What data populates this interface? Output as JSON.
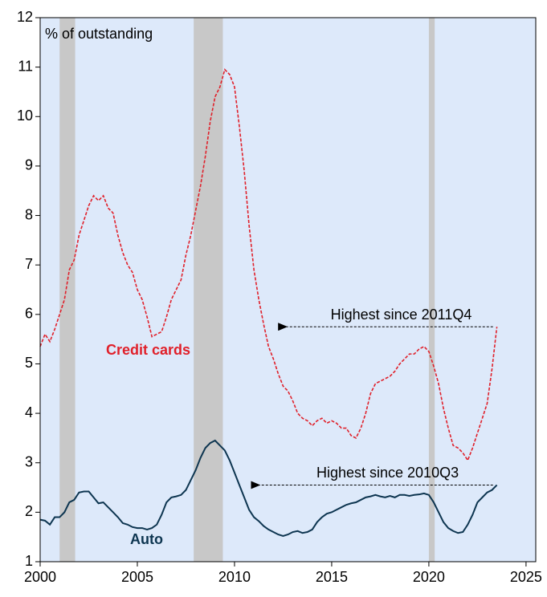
{
  "chart_data": {
    "type": "line",
    "ylabel": "% of outstanding",
    "x": [
      2000.0,
      2000.25,
      2000.5,
      2000.75,
      2001.0,
      2001.25,
      2001.5,
      2001.75,
      2002.0,
      2002.25,
      2002.5,
      2002.75,
      2003.0,
      2003.25,
      2003.5,
      2003.75,
      2004.0,
      2004.25,
      2004.5,
      2004.75,
      2005.0,
      2005.25,
      2005.5,
      2005.75,
      2006.0,
      2006.25,
      2006.5,
      2006.75,
      2007.0,
      2007.25,
      2007.5,
      2007.75,
      2008.0,
      2008.25,
      2008.5,
      2008.75,
      2009.0,
      2009.25,
      2009.5,
      2009.75,
      2010.0,
      2010.25,
      2010.5,
      2010.75,
      2011.0,
      2011.25,
      2011.5,
      2011.75,
      2012.0,
      2012.25,
      2012.5,
      2012.75,
      2013.0,
      2013.25,
      2013.5,
      2013.75,
      2014.0,
      2014.25,
      2014.5,
      2014.75,
      2015.0,
      2015.25,
      2015.5,
      2015.75,
      2016.0,
      2016.25,
      2016.5,
      2016.75,
      2017.0,
      2017.25,
      2017.5,
      2017.75,
      2018.0,
      2018.25,
      2018.5,
      2018.75,
      2019.0,
      2019.25,
      2019.5,
      2019.75,
      2020.0,
      2020.25,
      2020.5,
      2020.75,
      2021.0,
      2021.25,
      2021.5,
      2021.75,
      2022.0,
      2022.25,
      2022.5,
      2022.75,
      2023.0,
      2023.25,
      2023.5
    ],
    "series": [
      {
        "name": "Credit cards",
        "color": "#e0202a",
        "dash": true,
        "values": [
          5.35,
          5.6,
          5.45,
          5.7,
          6.0,
          6.3,
          6.9,
          7.1,
          7.6,
          7.9,
          8.2,
          8.4,
          8.3,
          8.4,
          8.15,
          8.05,
          7.6,
          7.25,
          7.0,
          6.85,
          6.5,
          6.3,
          5.95,
          5.55,
          5.6,
          5.65,
          5.95,
          6.3,
          6.5,
          6.7,
          7.2,
          7.6,
          8.1,
          8.6,
          9.2,
          9.9,
          10.4,
          10.6,
          10.95,
          10.85,
          10.6,
          9.8,
          8.9,
          7.8,
          6.9,
          6.3,
          5.8,
          5.35,
          5.1,
          4.8,
          4.55,
          4.45,
          4.25,
          4.0,
          3.9,
          3.85,
          3.75,
          3.85,
          3.9,
          3.8,
          3.85,
          3.8,
          3.7,
          3.7,
          3.55,
          3.5,
          3.7,
          4.0,
          4.4,
          4.6,
          4.65,
          4.7,
          4.75,
          4.85,
          5.0,
          5.1,
          5.2,
          5.2,
          5.3,
          5.35,
          5.25,
          4.95,
          4.6,
          4.1,
          3.7,
          3.35,
          3.3,
          3.2,
          3.05,
          3.3,
          3.6,
          3.9,
          4.2,
          4.9,
          5.75
        ]
      },
      {
        "name": "Auto",
        "color": "#0d3550",
        "dash": false,
        "values": [
          1.85,
          1.83,
          1.75,
          1.9,
          1.9,
          2.0,
          2.2,
          2.25,
          2.4,
          2.42,
          2.42,
          2.3,
          2.18,
          2.2,
          2.1,
          2.0,
          1.9,
          1.78,
          1.75,
          1.7,
          1.68,
          1.68,
          1.65,
          1.68,
          1.75,
          1.95,
          2.2,
          2.3,
          2.32,
          2.35,
          2.45,
          2.65,
          2.85,
          3.1,
          3.3,
          3.4,
          3.45,
          3.35,
          3.25,
          3.05,
          2.8,
          2.55,
          2.3,
          2.05,
          1.9,
          1.82,
          1.72,
          1.65,
          1.6,
          1.55,
          1.52,
          1.55,
          1.6,
          1.62,
          1.58,
          1.6,
          1.65,
          1.8,
          1.9,
          1.97,
          2.0,
          2.05,
          2.1,
          2.15,
          2.18,
          2.2,
          2.25,
          2.3,
          2.32,
          2.35,
          2.32,
          2.3,
          2.33,
          2.3,
          2.35,
          2.35,
          2.33,
          2.35,
          2.36,
          2.38,
          2.35,
          2.2,
          2.0,
          1.8,
          1.68,
          1.62,
          1.58,
          1.6,
          1.75,
          1.95,
          2.2,
          2.3,
          2.4,
          2.45,
          2.55
        ]
      }
    ],
    "shaded_periods": [
      [
        2001.0,
        2001.8
      ],
      [
        2007.9,
        2009.4
      ],
      [
        2020.0,
        2020.3
      ]
    ],
    "annotations": [
      {
        "text": "Highest since 2011Q4",
        "x": 2012.2,
        "x_end": 2023.3,
        "y": 5.75
      },
      {
        "text": "Highest since 2010Q3",
        "x": 2010.8,
        "x_end": 2023.3,
        "y": 2.55
      }
    ],
    "xlim": [
      2000,
      2025.5
    ],
    "xticks": [
      2000,
      2005,
      2010,
      2015,
      2020,
      2025
    ],
    "ylim": [
      1,
      12
    ],
    "yticks": [
      1,
      2,
      3,
      4,
      5,
      6,
      7,
      8,
      9,
      10,
      11,
      12
    ]
  }
}
